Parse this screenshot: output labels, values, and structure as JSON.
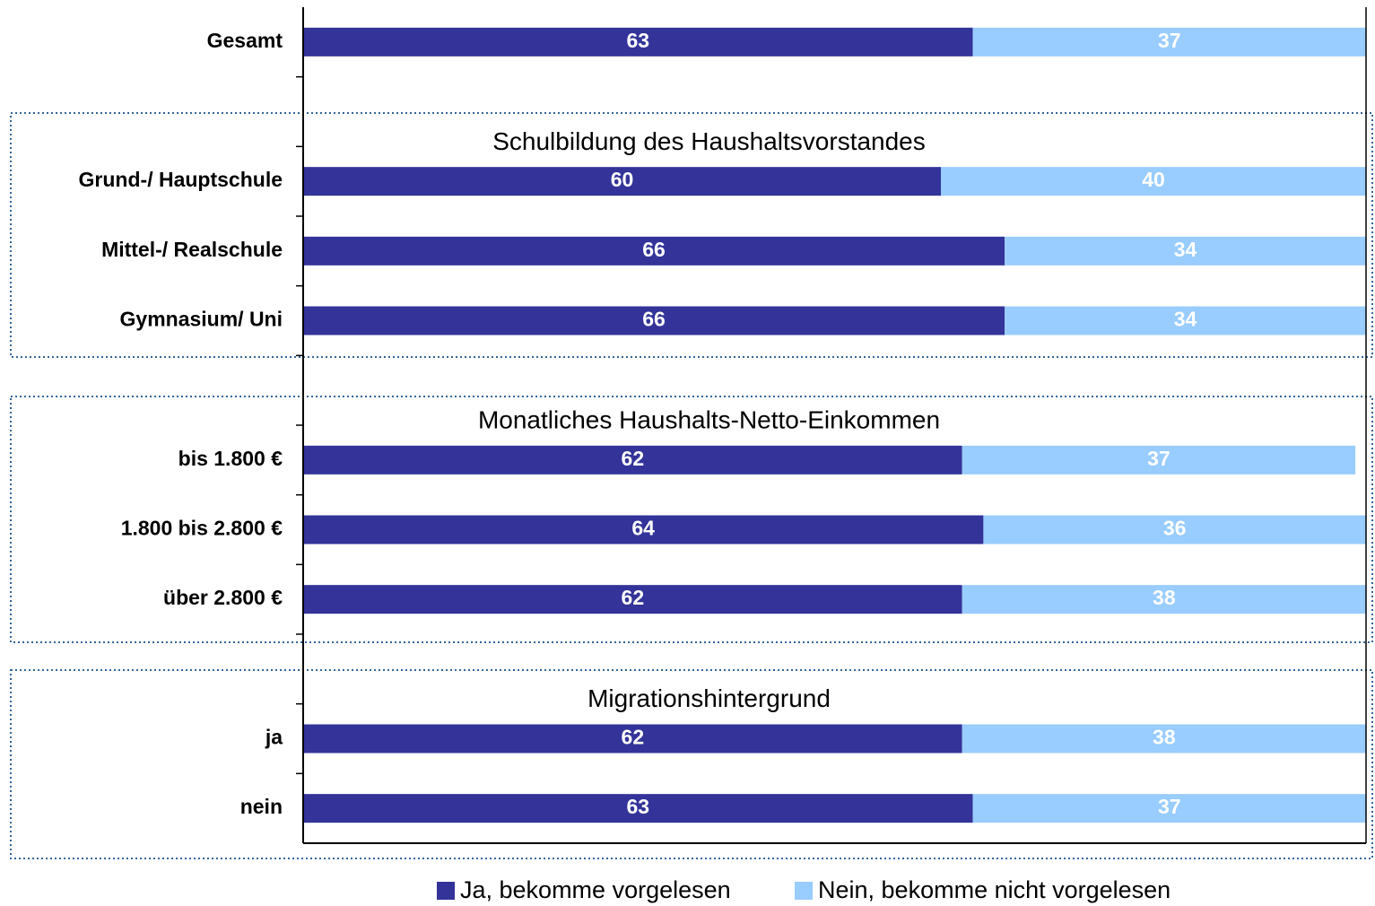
{
  "chart_data": {
    "type": "bar",
    "orientation": "horizontal",
    "stacked": true,
    "categories": [
      "Gesamt",
      null,
      "Grund-/ Hauptschule",
      "Mittel-/ Realschule",
      "Gymnasium/ Uni",
      null,
      "bis 1.800 €",
      "1.800 bis 2.800 €",
      "über 2.800 €",
      null,
      "ja",
      "nein"
    ],
    "series": [
      {
        "name": "Ja, bekomme vorgelesen",
        "color": "#333399",
        "values": [
          63,
          null,
          60,
          66,
          66,
          null,
          62,
          64,
          62,
          null,
          62,
          63
        ]
      },
      {
        "name": "Nein, bekomme nicht vorgelesen",
        "color": "#99ccff",
        "values": [
          37,
          null,
          40,
          34,
          34,
          null,
          37,
          36,
          38,
          null,
          38,
          37
        ]
      }
    ],
    "annotations": [
      "Schulbildung des Haushaltsvorstandes",
      "Monatliches Haushalts-Netto-Einkommen",
      "Migrationshintergrund"
    ],
    "xlim": [
      0,
      100
    ],
    "legend": "bottom"
  }
}
